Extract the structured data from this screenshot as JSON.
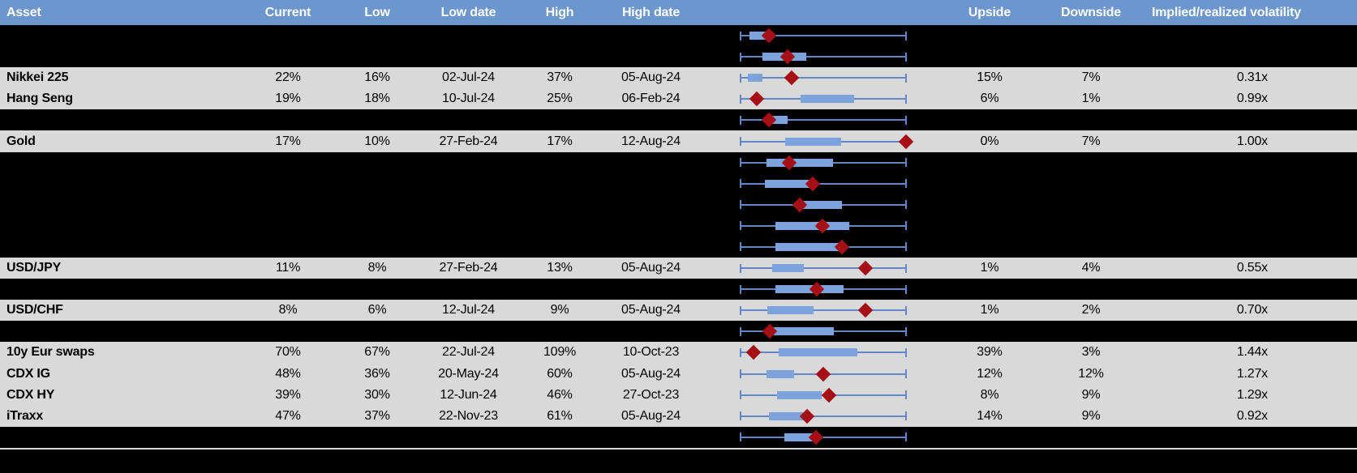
{
  "colors": {
    "header_bg": "#6C96CE",
    "header_text": "#FFFFFF",
    "row_bg": "#D9D9D9",
    "redacted_row_bg": "#000000",
    "whisker_blue": "#6287C7",
    "box_blue": "#7CA3DB",
    "diamond_red": "#A60F15",
    "separator_gray": "#D9D9D9",
    "body_text": "#000000"
  },
  "chart_data": {
    "type": "table",
    "title": "",
    "description": "Volatility monitor table; each row has a horizontal low-to-high range whisker with a shaded inner box and a dark-red diamond marking the current level. box_start/box_end/marker are fractions (0-1) of the low-to-high whisker span. Rows with asset null are blacked-out/redacted rows that still show their range plot.",
    "columns": [
      "Asset",
      "Current",
      "Low",
      "Low date",
      "High",
      "High date",
      "",
      "Upside",
      "Downside",
      "Implied/realized volatility"
    ],
    "rows": [
      {
        "asset": null,
        "current": null,
        "low": null,
        "low_date": null,
        "high": null,
        "high_date": null,
        "upside": null,
        "downside": null,
        "implied_realized_vol": null,
        "redacted": true,
        "chart": {
          "box_start": 0.055,
          "box_end": 0.198,
          "marker": 0.173
        }
      },
      {
        "asset": null,
        "current": null,
        "low": null,
        "low_date": null,
        "high": null,
        "high_date": null,
        "upside": null,
        "downside": null,
        "implied_realized_vol": null,
        "redacted": true,
        "chart": {
          "box_start": 0.133,
          "box_end": 0.398,
          "marker": 0.285
        }
      },
      {
        "asset": "Nikkei 225",
        "current": "22%",
        "low": "16%",
        "low_date": "02-Jul-24",
        "high": "37%",
        "high_date": "05-Aug-24",
        "upside": "15%",
        "downside": "7%",
        "implied_realized_vol": "0.31x",
        "redacted": false,
        "chart": {
          "box_start": 0.043,
          "box_end": 0.133,
          "marker": 0.308
        }
      },
      {
        "asset": "Hang Seng",
        "current": "19%",
        "low": "18%",
        "low_date": "10-Jul-24",
        "high": "25%",
        "high_date": "06-Feb-24",
        "upside": "6%",
        "downside": "1%",
        "implied_realized_vol": "0.99x",
        "redacted": false,
        "chart": {
          "box_start": 0.365,
          "box_end": 0.684,
          "marker": 0.097
        }
      },
      {
        "asset": null,
        "current": null,
        "low": null,
        "low_date": null,
        "high": null,
        "high_date": null,
        "upside": null,
        "downside": null,
        "implied_realized_vol": null,
        "redacted": true,
        "chart": {
          "box_start": 0.19,
          "box_end": 0.285,
          "marker": 0.17
        }
      },
      {
        "asset": "Gold",
        "current": "17%",
        "low": "10%",
        "low_date": "27-Feb-24",
        "high": "17%",
        "high_date": "12-Aug-24",
        "upside": "0%",
        "downside": "7%",
        "implied_realized_vol": "1.00x",
        "redacted": false,
        "chart": {
          "box_start": 0.271,
          "box_end": 0.607,
          "marker": 1.0
        }
      },
      {
        "asset": null,
        "current": null,
        "low": null,
        "low_date": null,
        "high": null,
        "high_date": null,
        "upside": null,
        "downside": null,
        "implied_realized_vol": null,
        "redacted": true,
        "chart": {
          "box_start": 0.157,
          "box_end": 0.558,
          "marker": 0.293
        }
      },
      {
        "asset": null,
        "current": null,
        "low": null,
        "low_date": null,
        "high": null,
        "high_date": null,
        "upside": null,
        "downside": null,
        "implied_realized_vol": null,
        "redacted": true,
        "chart": {
          "box_start": 0.146,
          "box_end": 0.419,
          "marker": 0.435
        }
      },
      {
        "asset": null,
        "current": null,
        "low": null,
        "low_date": null,
        "high": null,
        "high_date": null,
        "upside": null,
        "downside": null,
        "implied_realized_vol": null,
        "redacted": true,
        "chart": {
          "box_start": 0.37,
          "box_end": 0.612,
          "marker": 0.358
        }
      },
      {
        "asset": null,
        "current": null,
        "low": null,
        "low_date": null,
        "high": null,
        "high_date": null,
        "upside": null,
        "downside": null,
        "implied_realized_vol": null,
        "redacted": true,
        "chart": {
          "box_start": 0.21,
          "box_end": 0.656,
          "marker": 0.496
        }
      },
      {
        "asset": null,
        "current": null,
        "low": null,
        "low_date": null,
        "high": null,
        "high_date": null,
        "upside": null,
        "downside": null,
        "implied_realized_vol": null,
        "redacted": true,
        "chart": {
          "box_start": 0.21,
          "box_end": 0.614,
          "marker": 0.615
        }
      },
      {
        "asset": "USD/JPY",
        "current": "11%",
        "low": "8%",
        "low_date": "27-Feb-24",
        "high": "13%",
        "high_date": "05-Aug-24",
        "upside": "1%",
        "downside": "4%",
        "implied_realized_vol": "0.55x",
        "redacted": false,
        "chart": {
          "box_start": 0.19,
          "box_end": 0.381,
          "marker": 0.754
        }
      },
      {
        "asset": null,
        "current": null,
        "low": null,
        "low_date": null,
        "high": null,
        "high_date": null,
        "upside": null,
        "downside": null,
        "implied_realized_vol": null,
        "redacted": true,
        "chart": {
          "box_start": 0.21,
          "box_end": 0.623,
          "marker": 0.46
        }
      },
      {
        "asset": "USD/CHF",
        "current": "8%",
        "low": "6%",
        "low_date": "12-Jul-24",
        "high": "9%",
        "high_date": "05-Aug-24",
        "upside": "1%",
        "downside": "2%",
        "implied_realized_vol": "0.70x",
        "redacted": false,
        "chart": {
          "box_start": 0.162,
          "box_end": 0.443,
          "marker": 0.754
        }
      },
      {
        "asset": null,
        "current": null,
        "low": null,
        "low_date": null,
        "high": null,
        "high_date": null,
        "upside": null,
        "downside": null,
        "implied_realized_vol": null,
        "redacted": true,
        "chart": {
          "box_start": 0.19,
          "box_end": 0.563,
          "marker": 0.178
        }
      },
      {
        "asset": "10y Eur swaps",
        "current": "70%",
        "low": "67%",
        "low_date": "22-Jul-24",
        "high": "109%",
        "high_date": "10-Oct-23",
        "upside": "39%",
        "downside": "3%",
        "implied_realized_vol": "1.44x",
        "redacted": false,
        "chart": {
          "box_start": 0.231,
          "box_end": 0.708,
          "marker": 0.08
        }
      },
      {
        "asset": "CDX IG",
        "current": "48%",
        "low": "36%",
        "low_date": "20-May-24",
        "high": "60%",
        "high_date": "05-Aug-24",
        "upside": "12%",
        "downside": "12%",
        "implied_realized_vol": "1.27x",
        "redacted": false,
        "chart": {
          "box_start": 0.157,
          "box_end": 0.325,
          "marker": 0.501
        }
      },
      {
        "asset": "CDX HY",
        "current": "39%",
        "low": "30%",
        "low_date": "12-Jun-24",
        "high": "46%",
        "high_date": "27-Oct-23",
        "upside": "8%",
        "downside": "9%",
        "implied_realized_vol": "1.29x",
        "redacted": false,
        "chart": {
          "box_start": 0.222,
          "box_end": 0.492,
          "marker": 0.534
        }
      },
      {
        "asset": "iTraxx",
        "current": "47%",
        "low": "37%",
        "low_date": "22-Nov-23",
        "high": "61%",
        "high_date": "05-Aug-24",
        "upside": "14%",
        "downside": "9%",
        "implied_realized_vol": "0.92x",
        "redacted": false,
        "chart": {
          "box_start": 0.173,
          "box_end": 0.403,
          "marker": 0.403
        }
      },
      {
        "asset": null,
        "current": null,
        "low": null,
        "low_date": null,
        "high": null,
        "high_date": null,
        "upside": null,
        "downside": null,
        "implied_realized_vol": null,
        "redacted": true,
        "chart": {
          "box_start": 0.264,
          "box_end": 0.443,
          "marker": 0.457
        }
      }
    ]
  }
}
